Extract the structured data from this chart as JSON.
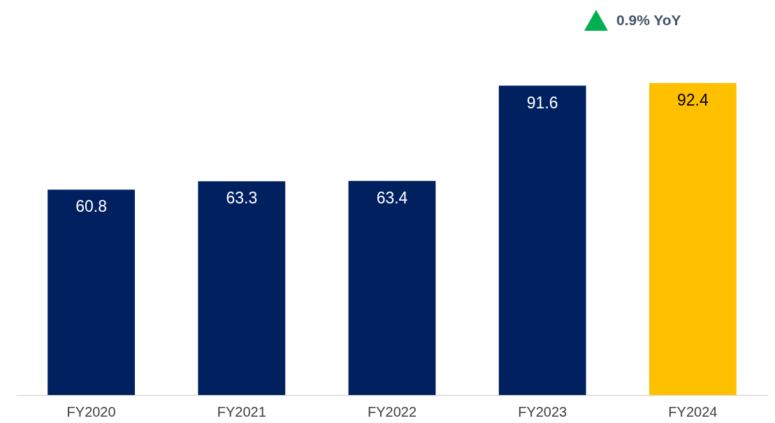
{
  "chart_data": {
    "type": "bar",
    "categories": [
      "FY2020",
      "FY2021",
      "FY2022",
      "FY2023",
      "FY2024"
    ],
    "values": [
      60.8,
      63.3,
      63.4,
      91.6,
      92.4
    ],
    "colors": [
      "#002060",
      "#002060",
      "#002060",
      "#002060",
      "#ffc000"
    ],
    "data_labels": true,
    "annotations": [
      "0.9% YoY"
    ]
  }
}
